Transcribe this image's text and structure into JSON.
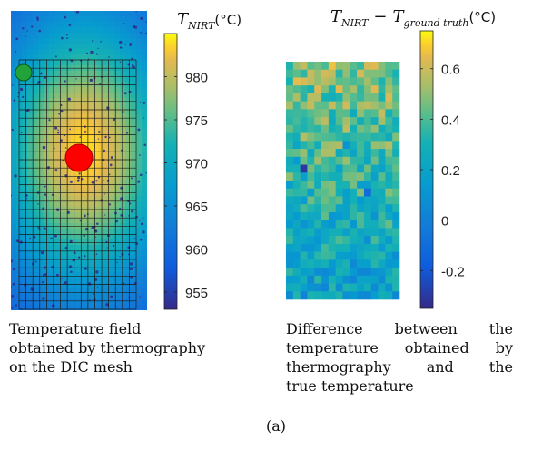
{
  "chart_data": [
    {
      "type": "heatmap",
      "title": "T_NIRT(°C)",
      "title_main": "T",
      "title_sub": "NIRT",
      "title_unit": "(°C)",
      "colorbar": {
        "min": 953,
        "max": 985,
        "ticks": [
          955,
          960,
          965,
          970,
          975,
          980
        ]
      },
      "field": {
        "center_x_frac": 0.54,
        "center_y_frac": 0.47,
        "peak": 984,
        "edge": 957
      },
      "mesh": {
        "cols": 17,
        "rows": 30
      },
      "markers": [
        {
          "name": "green-point",
          "color": "#21a33a"
        },
        {
          "name": "red-point",
          "color": "#ff0000"
        }
      ],
      "caption_lines": [
        "Temperature field",
        "obtained by thermography",
        "on the DIC mesh"
      ]
    },
    {
      "type": "heatmap",
      "title": "T_NIRT − T_ground truth(°C)",
      "title_a": "T",
      "title_a_sub": "NIRT",
      "title_minus": "−",
      "title_b": "T",
      "title_b_sub": "ground truth",
      "title_unit": "(°C)",
      "colorbar": {
        "min": -0.35,
        "max": 0.75,
        "ticks": [
          -0.2,
          0,
          0.2,
          0.4,
          0.6
        ]
      },
      "grid": {
        "cols": 16,
        "rows": 30
      },
      "caption_lines": [
        "Difference between the",
        "temperature obtained by",
        "thermography and the",
        "true temperature"
      ]
    }
  ],
  "figure_label": "(a)"
}
